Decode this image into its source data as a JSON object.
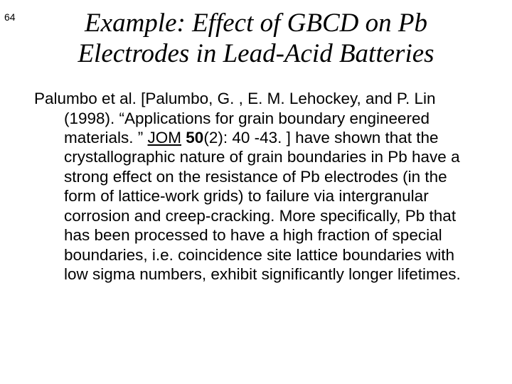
{
  "page_number": "64",
  "title_line1": "Example: Effect of GBCD on Pb",
  "title_line2": "Electrodes in Lead-Acid Batteries",
  "body_pre": "Palumbo et al. [Palumbo, G. , E. M. Lehockey, and P. Lin (1998). “Applications for grain boundary engineered materials. ” ",
  "journal": "JOM",
  "space1": " ",
  "volume": "50",
  "body_post": "(2): 40 -43. ] have shown that the crystallographic nature of grain boundaries in Pb have a strong effect on the resistance of Pb electrodes (in the form of lattice-work grids) to failure via intergranular corrosion and creep-cracking.  More specifically, Pb that has been processed to have a high fraction of special boundaries, i.e. coincidence site lattice boundaries with low sigma numbers, exhibit significantly longer lifetimes.",
  "colors": {
    "background": "#ffffff",
    "text": "#000000"
  },
  "fonts": {
    "title_family": "Times New Roman",
    "title_style": "italic",
    "title_size_pt": 28,
    "body_family": "Arial",
    "body_size_pt": 17
  }
}
